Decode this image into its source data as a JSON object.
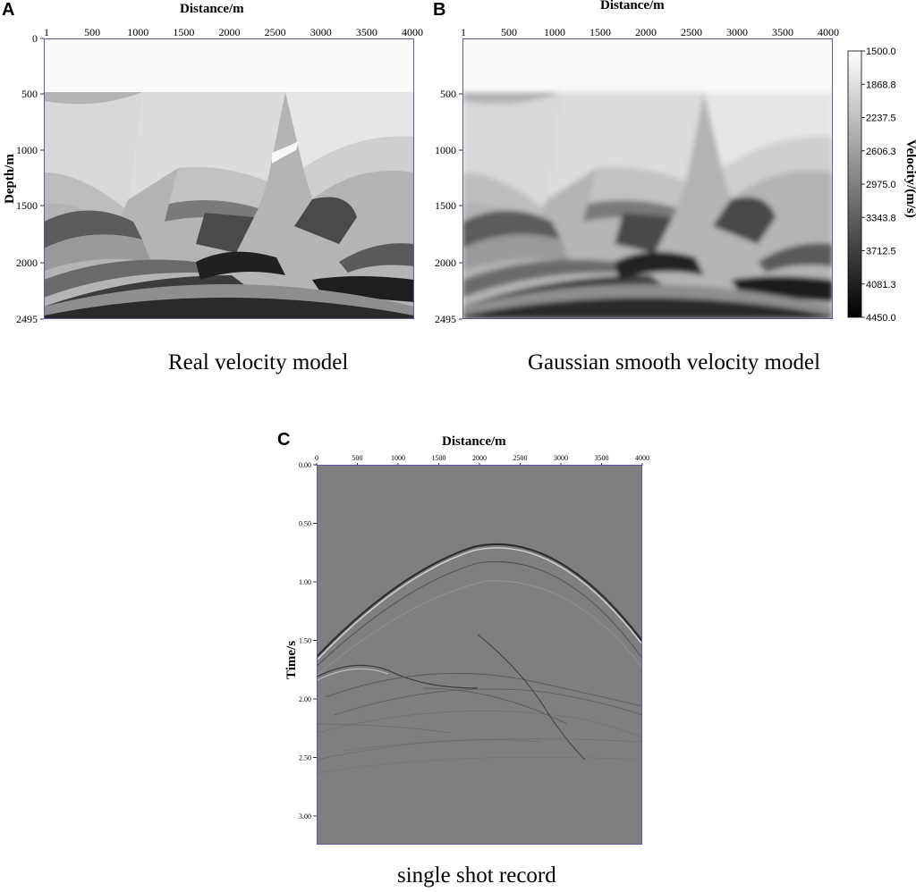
{
  "panels": {
    "a": {
      "label": "A",
      "xlabel": "Distance/m",
      "ylabel": "Depth/m",
      "xticks": [
        "1",
        "500",
        "1000",
        "1500",
        "2000",
        "2500",
        "3000",
        "3500",
        "4000"
      ],
      "yticks": [
        "0",
        "500",
        "1000",
        "1500",
        "2000",
        "2495"
      ],
      "caption": "Real velocity model"
    },
    "b": {
      "label": "B",
      "xlabel": "Distance/m",
      "xticks": [
        "1",
        "500",
        "1000",
        "1500",
        "2000",
        "2500",
        "3000",
        "3500",
        "4000"
      ],
      "yticks": [
        "500",
        "1000",
        "1500",
        "2000",
        "2495"
      ],
      "caption": "Gaussian smooth velocity model",
      "colorbar": {
        "title": "Velocity/(m/s)",
        "labels": [
          "1500.0",
          "1868.8",
          "2237.5",
          "2606.3",
          "2975.0",
          "3343.8",
          "3712.5",
          "4081.3",
          "4450.0"
        ]
      }
    },
    "c": {
      "label": "C",
      "xlabel": "Distance/m",
      "ylabel": "Time/s",
      "xticks": [
        "0",
        "500",
        "1000",
        "1500",
        "2000",
        "2500",
        "3000",
        "3500",
        "4000"
      ],
      "yticks": [
        "0.00",
        "0.50",
        "1.00",
        "1.50",
        "2.00",
        "2.50",
        "3.00"
      ],
      "caption": "single shot record"
    }
  },
  "colors": {
    "frame": "#5a5aa0",
    "seismic_bg": "#7f7f7f"
  }
}
